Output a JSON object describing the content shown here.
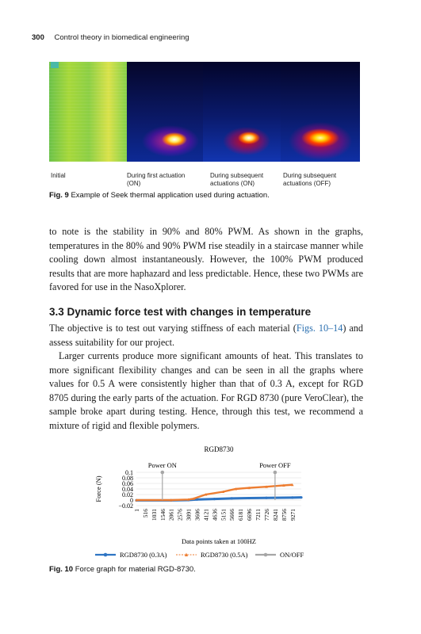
{
  "header": {
    "page_number": "300",
    "running_title": "Control theory in biomedical engineering"
  },
  "thermal_figure": {
    "panels": [
      {
        "caption_line1": "Initial",
        "caption_line2": ""
      },
      {
        "caption_line1": "During first actuation",
        "caption_line2": "(ON)"
      },
      {
        "caption_line1": "During subsequent",
        "caption_line2": "actuations (ON)"
      },
      {
        "caption_line1": "During subsequent",
        "caption_line2": "actuations (OFF)"
      }
    ],
    "caption_label": "Fig. 9",
    "caption_text": "Example of Seek thermal application used during actuation."
  },
  "body": {
    "para1": "to note is the stability in 90% and 80% PWM. As shown in the graphs, temperatures in the 80% and 90% PWM rise steadily in a staircase manner while cooling down almost instantaneously. However, the 100% PWM produced results that are more haphazard and less predictable. Hence, these two PWMs are favored for use in the NasoXplorer.",
    "section_heading": "3.3 Dynamic force test with changes in temperature",
    "para2_before": "The objective is to test out varying stiffness of each material (",
    "para2_link": "Figs. 10–14",
    "para2_after": ") and assess suitability for our project.",
    "para3": "Larger currents produce more significant amounts of heat. This translates to more significant flexibility changes and can be seen in all the graphs where values for 0.5 A were consistently higher than that of 0.3 A, except for RGD 8705 during the early parts of the actuation. For RGD 8730 (pure VeroClear), the sample broke apart during testing. Hence, through this test, we recommend a mixture of rigid and flexible polymers."
  },
  "chart_caption": {
    "label": "Fig. 10",
    "text": "Force graph for material RGD-8730."
  },
  "chart_data": {
    "type": "line",
    "title": "RGD8730",
    "xlabel": "Data points taken at 100HZ",
    "ylabel": "Force (N)",
    "ylim": [
      -0.02,
      0.1
    ],
    "yticks": [
      "0.1",
      "0.08",
      "0.06",
      "0.04",
      "0.02",
      "0",
      "−0.02"
    ],
    "categories": [
      "1",
      "516",
      "1031",
      "1546",
      "2061",
      "2576",
      "3091",
      "3606",
      "4121",
      "4636",
      "5151",
      "5666",
      "6181",
      "6696",
      "7211",
      "7726",
      "8241",
      "8756",
      "9271"
    ],
    "grid": true,
    "legend_position": "bottom",
    "annotations": [
      {
        "text": "Power ON",
        "x": 1546
      },
      {
        "text": "Power OFF",
        "x": 8241
      }
    ],
    "series": [
      {
        "name": "RGD8730 (0.3A)",
        "color": "#2e75c4",
        "x": [
          1,
          2061,
          3091,
          3606,
          4636,
          5666,
          6696,
          7726,
          9271,
          9800
        ],
        "y": [
          -0.001,
          -0.001,
          0.0,
          0.002,
          0.004,
          0.006,
          0.007,
          0.008,
          0.009,
          0.0095
        ]
      },
      {
        "name": "RGD8730 (0.5A)",
        "color": "#ed7d31",
        "x": [
          1,
          2061,
          3091,
          3400,
          4121,
          5151,
          5900,
          6696,
          7726,
          8756,
          9271
        ],
        "y": [
          0.0,
          0.0,
          0.002,
          0.005,
          0.02,
          0.03,
          0.04,
          0.044,
          0.048,
          0.053,
          0.055
        ]
      },
      {
        "name": "ON/OFF",
        "color": "#a6a6a6",
        "x": [
          1546,
          1546,
          8241,
          8241
        ],
        "y": [
          0.0,
          0.1,
          0.0,
          0.1
        ]
      }
    ]
  }
}
